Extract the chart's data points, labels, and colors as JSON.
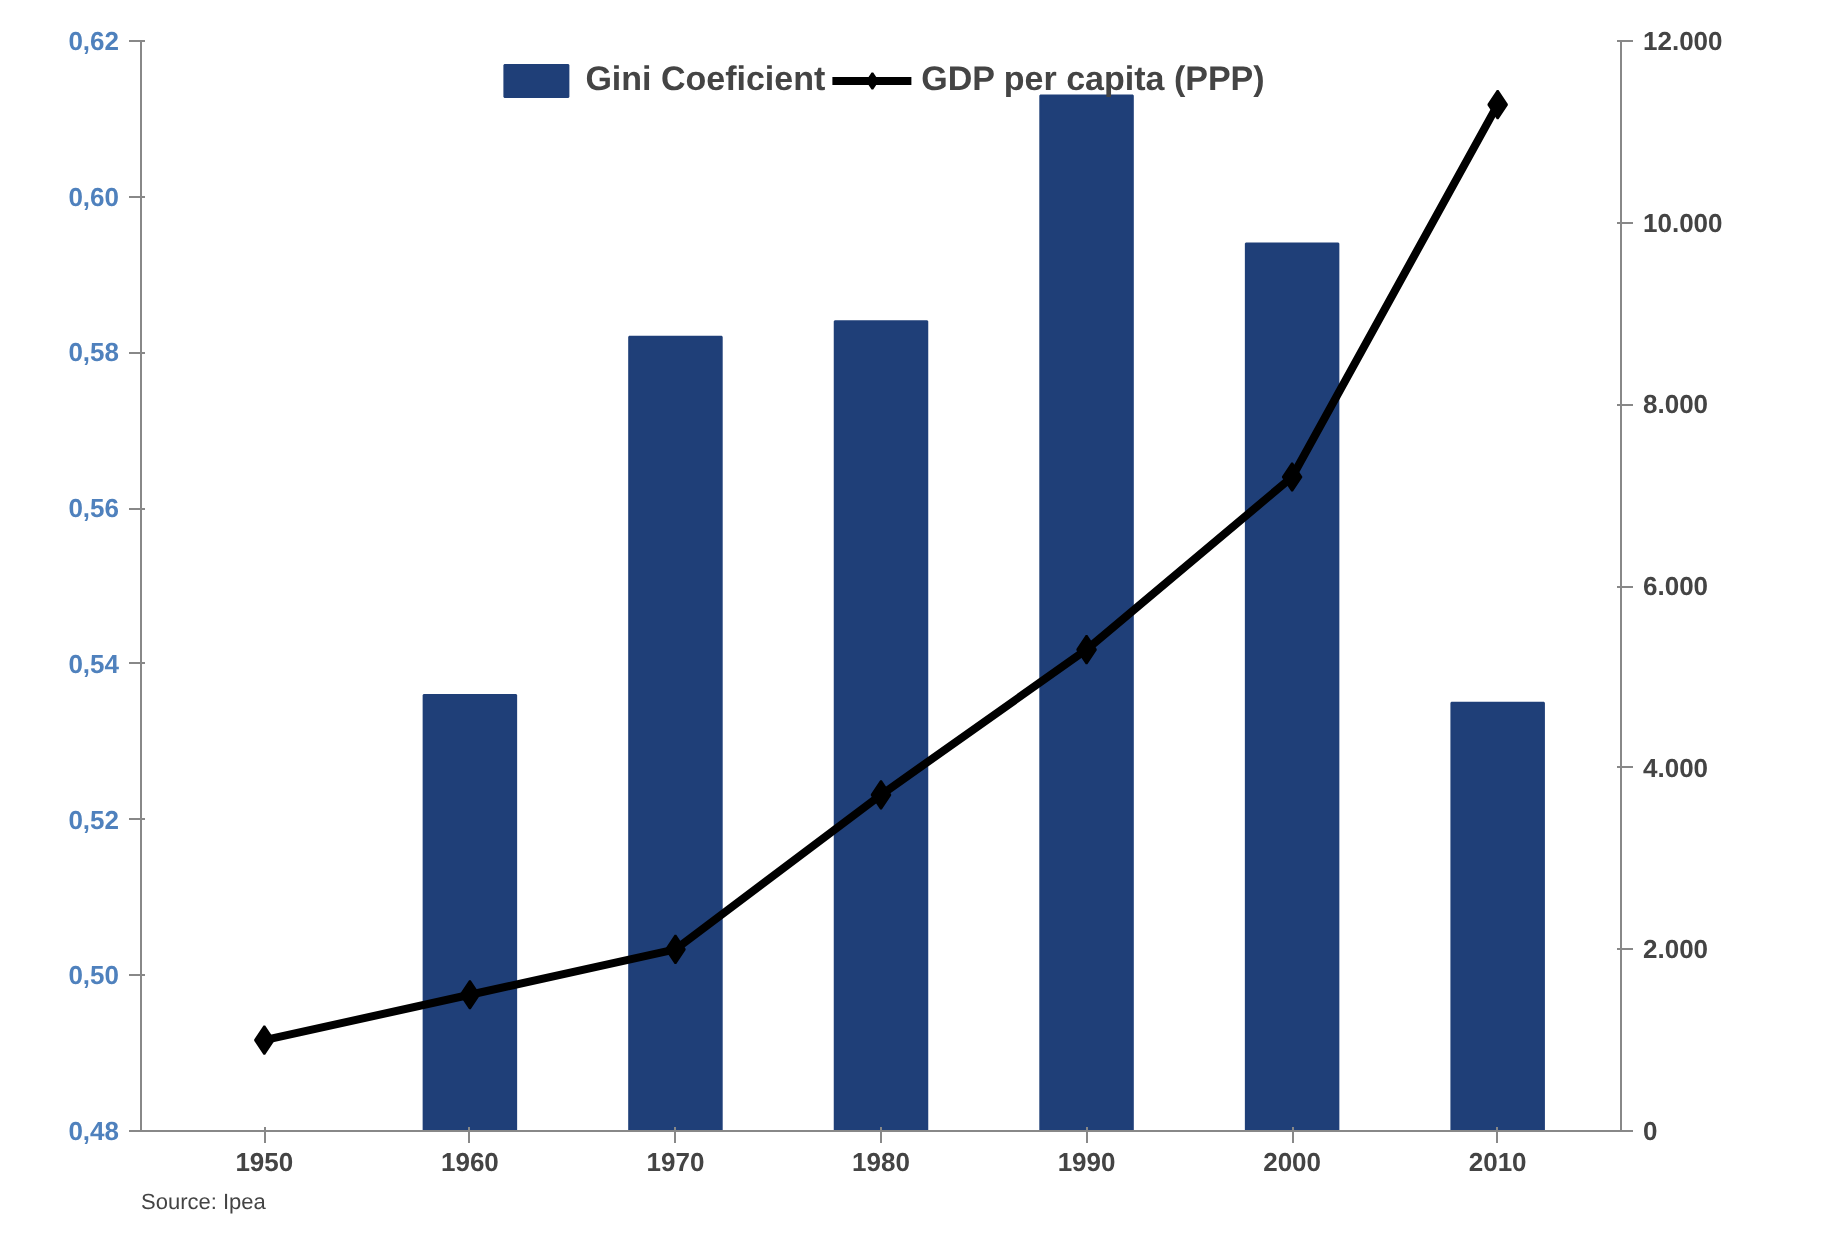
{
  "chart_data": {
    "type": "bar",
    "categories": [
      "1950",
      "1960",
      "1970",
      "1980",
      "1990",
      "2000",
      "2010"
    ],
    "series": [
      {
        "name": "Gini Coeficient",
        "color": "#1f3f78",
        "values": [
          null,
          0.536,
          0.582,
          0.584,
          0.613,
          0.594,
          0.535
        ]
      },
      {
        "name": "GDP per capita (PPP)",
        "type": "line",
        "axis": "y2",
        "color": "#000000",
        "marker": "diamond",
        "values": [
          1000,
          1500,
          2000,
          3700,
          5300,
          7200,
          11300
        ]
      }
    ],
    "ylim": [
      0.48,
      0.62
    ],
    "yticks": [
      {
        "value": 0.48,
        "label": "0,48"
      },
      {
        "value": 0.5,
        "label": "0,50"
      },
      {
        "value": 0.52,
        "label": "0,52"
      },
      {
        "value": 0.54,
        "label": "0,54"
      },
      {
        "value": 0.56,
        "label": "0,56"
      },
      {
        "value": 0.58,
        "label": "0,58"
      },
      {
        "value": 0.6,
        "label": "0,60"
      },
      {
        "value": 0.62,
        "label": "0,62"
      }
    ],
    "y2lim": [
      0,
      12000
    ],
    "y2ticks": [
      0,
      {
        "value": 2000,
        "label": "2.000"
      },
      {
        "value": 4000,
        "label": "4.000"
      },
      {
        "value": 6000,
        "label": "6.000"
      },
      {
        "value": 8000,
        "label": "8.000"
      },
      {
        "value": 10000,
        "label": "10.000"
      },
      {
        "value": 12000,
        "label": "12.000"
      }
    ],
    "legend": "top",
    "grid": false,
    "annotations": [
      "Source: Ipea"
    ]
  }
}
